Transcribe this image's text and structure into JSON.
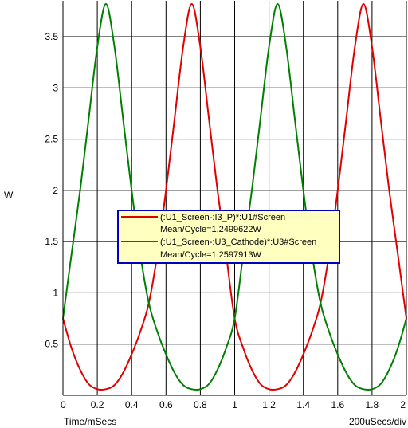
{
  "chart_data": {
    "type": "line",
    "ylabel": "W",
    "xlabel": "Time/mSecs",
    "xscale_note": "200uSecs/div",
    "xlim": [
      0,
      2
    ],
    "ylim": [
      0,
      3.85
    ],
    "grid": true,
    "x_ticks": [
      0,
      0.2,
      0.4,
      0.6,
      0.8,
      1,
      1.2,
      1.4,
      1.6,
      1.8,
      2
    ],
    "x_tick_labels": [
      "0",
      "0.2",
      "0.4",
      "0.6",
      "0.8",
      "1",
      "1.2",
      "1.4",
      "1.6",
      "1.8",
      "2"
    ],
    "y_ticks": [
      0.5,
      1,
      1.5,
      2,
      2.5,
      3,
      3.5
    ],
    "y_tick_labels": [
      "0.5",
      "1",
      "1.5",
      "2",
      "2.5",
      "3",
      "3.5"
    ],
    "legend_position": "center",
    "series": [
      {
        "name": "(:U1_Screen-:I3_P)*:U1#Screen",
        "mean_label": "Mean/Cycle=1.2499622W",
        "color": "#e00000",
        "x": [
          0,
          0.05,
          0.1,
          0.15,
          0.2,
          0.25,
          0.3,
          0.35,
          0.4,
          0.45,
          0.5,
          0.55,
          0.6,
          0.65,
          0.7,
          0.75,
          0.8,
          0.85,
          0.9,
          0.95,
          1,
          1.05,
          1.1,
          1.15,
          1.2,
          1.25,
          1.3,
          1.35,
          1.4,
          1.45,
          1.5,
          1.55,
          1.6,
          1.65,
          1.7,
          1.75,
          1.8,
          1.85,
          1.9,
          1.95,
          2
        ],
        "y": [
          0.75,
          0.46,
          0.25,
          0.11,
          0.06,
          0.06,
          0.1,
          0.22,
          0.4,
          0.62,
          0.9,
          1.38,
          2.0,
          2.7,
          3.4,
          3.82,
          3.4,
          2.7,
          2.0,
          1.38,
          0.75,
          0.46,
          0.25,
          0.11,
          0.06,
          0.06,
          0.1,
          0.22,
          0.4,
          0.62,
          0.9,
          1.38,
          2.0,
          2.7,
          3.4,
          3.82,
          3.4,
          2.7,
          2.0,
          1.38,
          0.75
        ]
      },
      {
        "name": "(:U1_Screen-:U3_Cathode)*:U3#Screen",
        "mean_label": "Mean/Cycle=1.2597913W",
        "color": "#008000",
        "x": [
          0,
          0.05,
          0.1,
          0.15,
          0.2,
          0.25,
          0.3,
          0.35,
          0.4,
          0.45,
          0.5,
          0.55,
          0.6,
          0.65,
          0.7,
          0.75,
          0.8,
          0.85,
          0.9,
          0.95,
          1,
          1.05,
          1.1,
          1.15,
          1.2,
          1.25,
          1.3,
          1.35,
          1.4,
          1.45,
          1.5,
          1.55,
          1.6,
          1.65,
          1.7,
          1.75,
          1.8,
          1.85,
          1.9,
          1.95,
          2
        ],
        "y": [
          0.75,
          1.38,
          2.0,
          2.7,
          3.4,
          3.82,
          3.4,
          2.7,
          2.0,
          1.38,
          0.9,
          0.62,
          0.4,
          0.22,
          0.1,
          0.06,
          0.06,
          0.11,
          0.25,
          0.46,
          0.75,
          1.38,
          2.0,
          2.7,
          3.4,
          3.82,
          3.4,
          2.7,
          2.0,
          1.38,
          0.9,
          0.62,
          0.4,
          0.22,
          0.1,
          0.06,
          0.06,
          0.11,
          0.25,
          0.46,
          0.75
        ]
      }
    ]
  }
}
